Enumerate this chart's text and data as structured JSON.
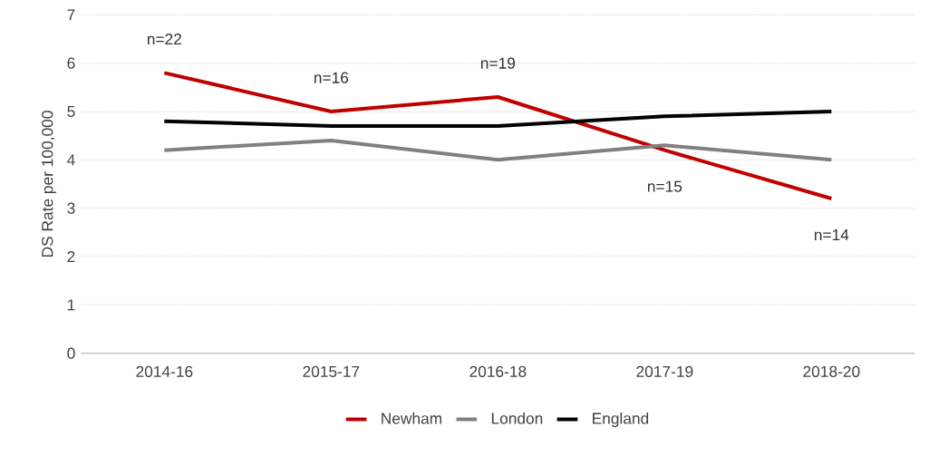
{
  "chart_data": {
    "type": "line",
    "ylabel": "DS Rate per 100,000",
    "categories": [
      "2014-16",
      "2015-17",
      "2016-18",
      "2017-19",
      "2018-20"
    ],
    "series": [
      {
        "name": "Newham",
        "color": "#c00000",
        "values": [
          5.8,
          5.0,
          5.3,
          4.2,
          3.2
        ]
      },
      {
        "name": "London",
        "color": "#808080",
        "values": [
          4.2,
          4.4,
          4.0,
          4.3,
          4.0
        ]
      },
      {
        "name": "England",
        "color": "#000000",
        "values": [
          4.8,
          4.7,
          4.7,
          4.9,
          5.0
        ]
      }
    ],
    "ylim": [
      0,
      7
    ],
    "yticks": [
      0,
      1,
      2,
      3,
      4,
      5,
      6,
      7
    ],
    "grid": "y",
    "legend": "bottom",
    "marker": "none",
    "line_style": "solid",
    "annotations": [
      {
        "text": "n=22",
        "x": "2014-16",
        "y": 5.8
      },
      {
        "text": "n=16",
        "x": "2015-17",
        "y": 5.0
      },
      {
        "text": "n=19",
        "x": "2016-18",
        "y": 5.3
      },
      {
        "text": "n=15",
        "x": "2017-19",
        "y": 4.2
      },
      {
        "text": "n=14",
        "x": "2018-20",
        "y": 3.2
      }
    ]
  }
}
